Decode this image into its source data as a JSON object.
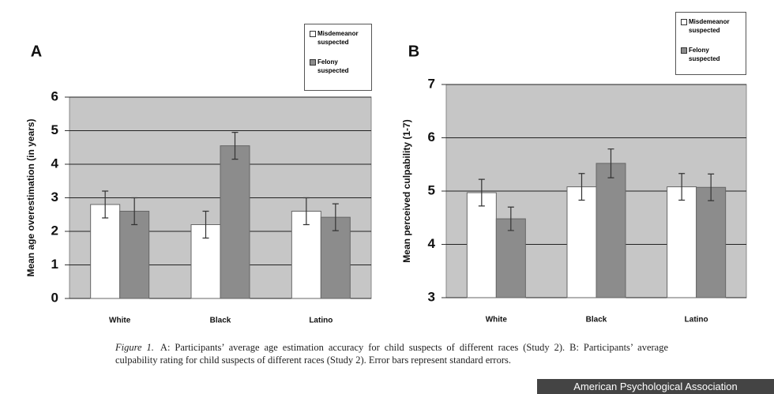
{
  "chart_data": [
    {
      "type": "bar",
      "panel_label": "A",
      "y_label": "Mean age overestimation (in years)",
      "categories": [
        "White",
        "Black",
        "Latino"
      ],
      "series": [
        {
          "name": "Misdemeanor suspected",
          "color": "#ffffff",
          "values": [
            2.8,
            2.2,
            2.6
          ],
          "errors": [
            0.4,
            0.4,
            0.4
          ]
        },
        {
          "name": "Felony suspected",
          "color": "#8c8c8c",
          "values": [
            2.6,
            4.55,
            2.42
          ],
          "errors": [
            0.4,
            0.4,
            0.4
          ]
        }
      ],
      "ylim": [
        0,
        6
      ],
      "yticks": [
        0,
        1,
        2,
        3,
        4,
        5,
        6
      ],
      "grid": true
    },
    {
      "type": "bar",
      "panel_label": "B",
      "y_label": "Mean perceived culpability (1-7)",
      "categories": [
        "White",
        "Black",
        "Latino"
      ],
      "series": [
        {
          "name": "Misdemeanor suspected",
          "color": "#ffffff",
          "values": [
            4.97,
            5.08,
            5.08
          ],
          "errors": [
            0.25,
            0.25,
            0.25
          ]
        },
        {
          "name": "Felony suspected",
          "color": "#8c8c8c",
          "values": [
            4.48,
            5.52,
            5.07
          ],
          "errors": [
            0.22,
            0.27,
            0.25
          ]
        }
      ],
      "ylim": [
        3,
        7
      ],
      "yticks": [
        3,
        4,
        5,
        6,
        7
      ],
      "grid": true
    }
  ],
  "caption": {
    "label": "Figure 1.",
    "text": "A: Participants’ average age estimation accuracy for child suspects of different races (Study 2). B: Participants’ average culpability rating for child suspects of different races (Study 2). Error bars represent standard errors."
  },
  "credit": "American Psychological Association"
}
